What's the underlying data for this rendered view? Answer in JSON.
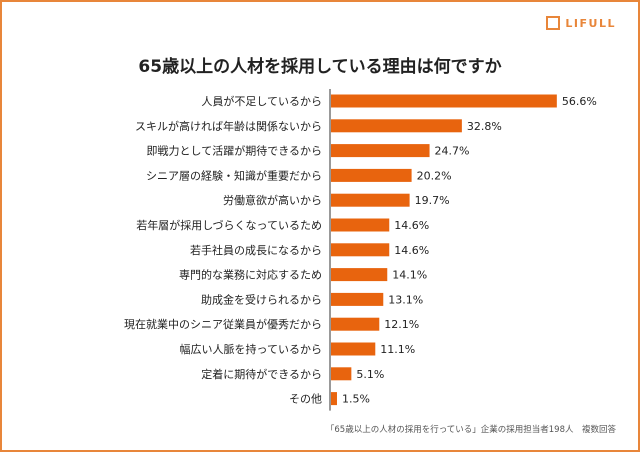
{
  "logo": {
    "text": "LIFULL"
  },
  "chart_data": {
    "type": "bar",
    "orientation": "horizontal",
    "title": "65歳以上の人材を採用している理由は何ですか",
    "categories": [
      "人員が不足しているから",
      "スキルが高ければ年齢は関係ないから",
      "即戦力として活躍が期待できるから",
      "シニア層の経験・知識が重要だから",
      "労働意欲が高いから",
      "若年層が採用しづらくなっているため",
      "若手社員の成長になるから",
      "専門的な業務に対応するため",
      "助成金を受けられるから",
      "現在就業中のシニア従業員が優秀だから",
      "幅広い人脈を持っているから",
      "定着に期待ができるから",
      "その他"
    ],
    "values": [
      56.6,
      32.8,
      24.7,
      20.2,
      19.7,
      14.6,
      14.6,
      14.1,
      13.1,
      12.1,
      11.1,
      5.1,
      1.5
    ],
    "unit": "%",
    "bar_color": "#e8640e",
    "note": "「65歳以上の人材の採用を行っている」企業の採用担当者198人　複数回答"
  }
}
